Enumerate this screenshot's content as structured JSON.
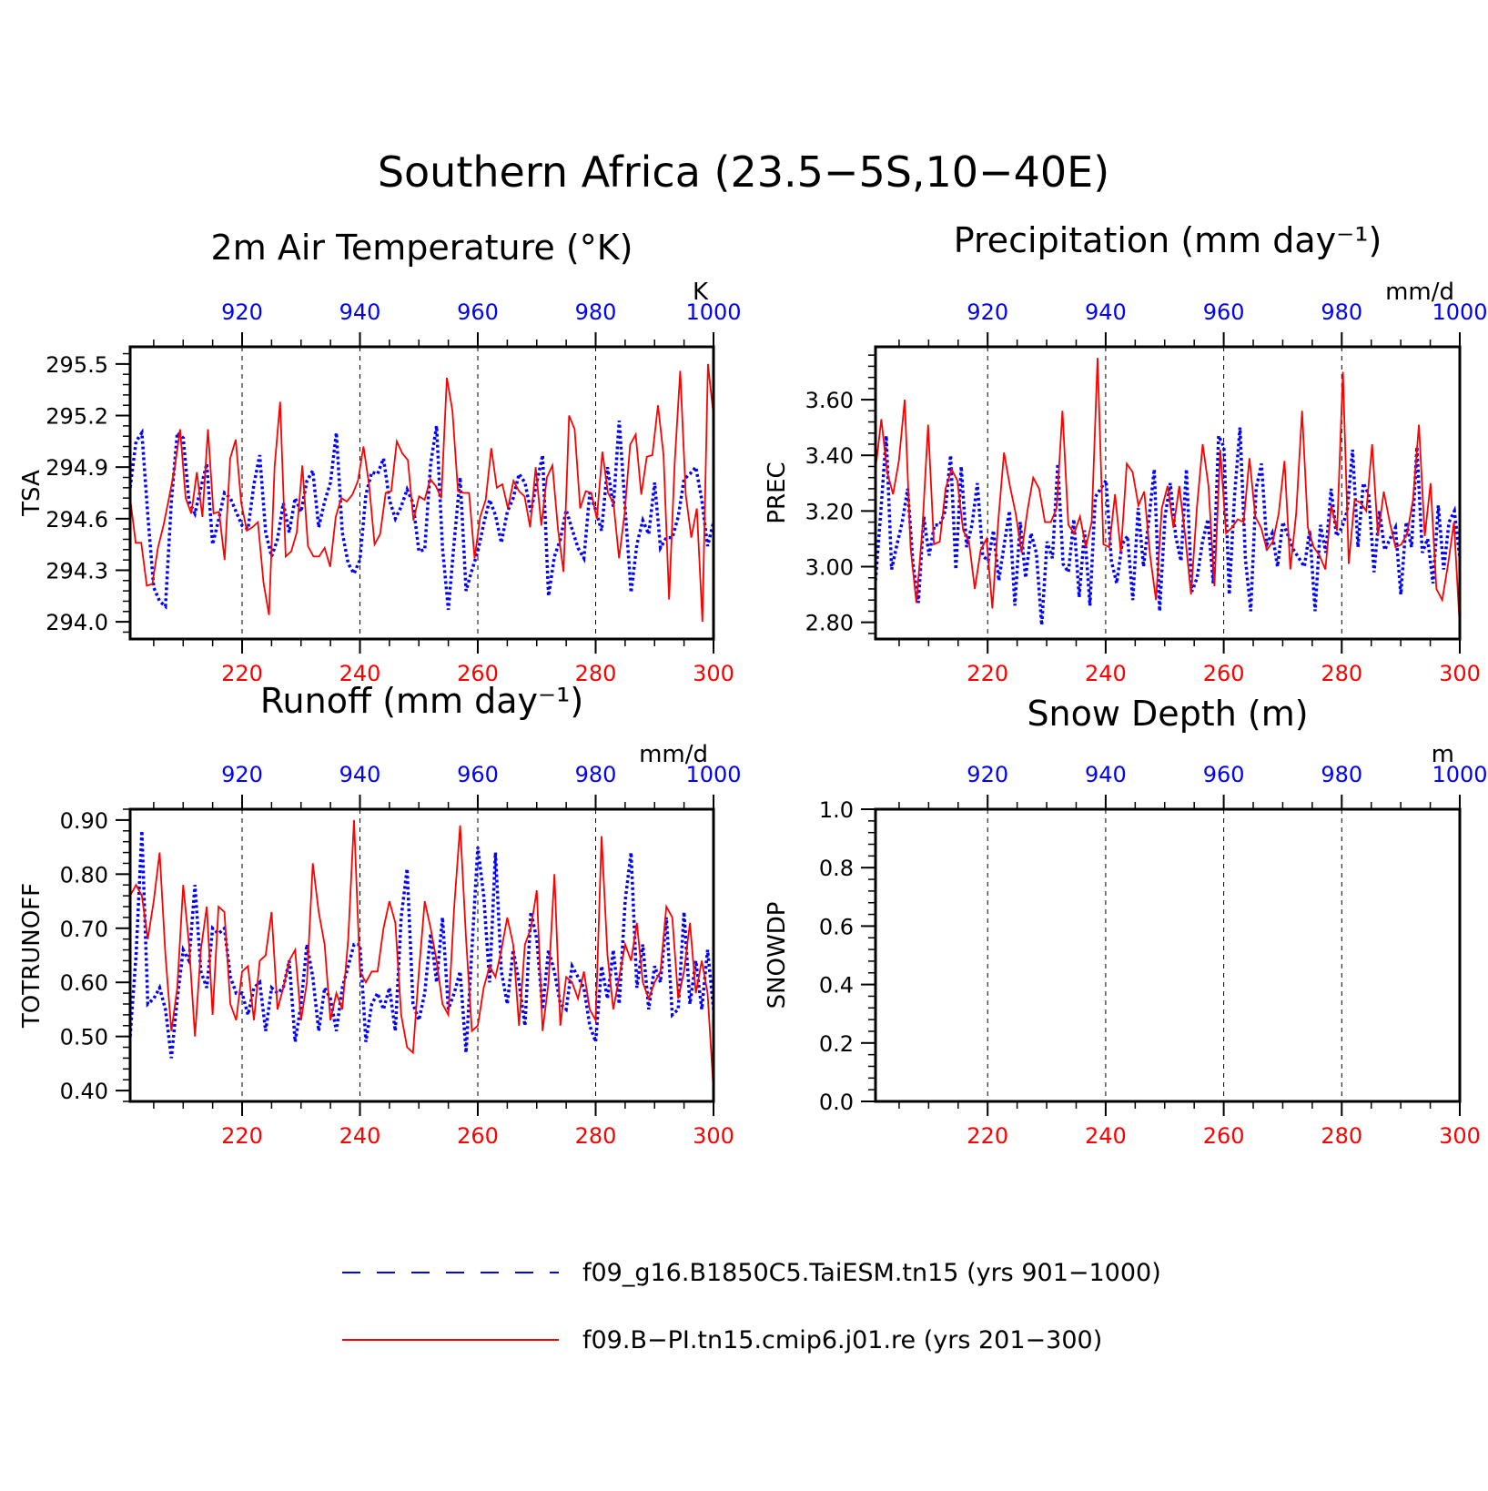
{
  "figure_title": "Southern Africa (23.5−5S,10−40E)",
  "colors": {
    "run_a": "#0000ff",
    "run_b": "#ff0000",
    "axis": "#000000"
  },
  "legend": {
    "placement": "bottom-center",
    "entries": [
      {
        "label": "f09_g16.B1850C5.TaiESM.tn15 (yrs 901−1000)",
        "color": "#0000ff",
        "style": "dashed"
      },
      {
        "label": "f09.B−PI.tn15.cmip6.j01.re (yrs 201−300)",
        "color": "#ff0000",
        "style": "solid"
      }
    ]
  },
  "chart_data": [
    {
      "type": "line",
      "title": "2m Air Temperature (°K)",
      "ylabel": "TSA",
      "units": "K",
      "ylim": [
        293.9,
        295.6
      ],
      "yticks": [
        294.0,
        294.3,
        294.6,
        294.9,
        295.2,
        295.5
      ],
      "ytick_labels": [
        "294.0",
        "294.3",
        "294.6",
        "294.9",
        "295.2",
        "295.5"
      ],
      "bottom_xlim": [
        201,
        300
      ],
      "bottom_xticks": [
        220,
        240,
        260,
        280,
        300
      ],
      "top_xlim": [
        901,
        1000
      ],
      "top_xticks": [
        920,
        940,
        960,
        980,
        1000
      ],
      "grid": "vertical dashed",
      "series": [
        {
          "values": [
            294.78,
            295.05,
            295.1,
            294.62,
            294.2,
            294.12,
            294.09,
            294.7,
            295.1,
            295.07,
            294.7,
            294.63,
            294.78,
            294.92,
            294.45,
            294.59,
            294.75,
            294.72,
            294.64,
            294.56,
            294.54,
            294.8,
            294.97,
            294.52,
            294.38,
            294.48,
            294.69,
            294.52,
            294.72,
            294.64,
            294.82,
            294.88,
            294.55,
            294.7,
            294.81,
            295.1,
            294.52,
            294.34,
            294.28,
            294.36,
            294.74,
            294.87,
            294.86,
            294.95,
            294.71,
            294.6,
            294.67,
            294.77,
            294.69,
            294.41,
            294.42,
            294.92,
            295.14,
            294.43,
            294.07,
            294.47,
            294.84,
            294.18,
            294.3,
            294.41,
            294.57,
            294.71,
            294.62,
            294.46,
            294.64,
            294.72,
            294.86,
            294.81,
            294.64,
            294.81,
            294.97,
            294.15,
            294.38,
            294.48,
            294.65,
            294.54,
            294.43,
            294.37,
            294.75,
            294.65,
            294.53,
            294.9,
            294.67,
            295.17,
            294.66,
            294.17,
            294.45,
            294.59,
            294.51,
            294.81,
            294.43,
            294.49,
            294.49,
            294.61,
            294.83,
            294.86,
            294.9,
            294.71,
            294.44,
            294.58
          ]
        },
        {
          "values": [
            294.72,
            294.46,
            294.46,
            294.21,
            294.22,
            294.43,
            294.56,
            294.72,
            294.89,
            295.12,
            294.72,
            294.63,
            294.87,
            294.61,
            295.12,
            294.63,
            294.64,
            294.36,
            294.95,
            295.06,
            294.69,
            294.53,
            294.55,
            294.58,
            294.23,
            294.04,
            294.9,
            295.28,
            294.38,
            294.41,
            294.52,
            294.91,
            294.44,
            294.38,
            294.38,
            294.43,
            294.32,
            294.61,
            294.72,
            294.7,
            294.74,
            294.82,
            295.02,
            294.8,
            294.45,
            294.51,
            294.75,
            294.76,
            295.05,
            294.98,
            294.94,
            294.59,
            294.73,
            294.71,
            294.83,
            294.79,
            294.72,
            295.42,
            295.23,
            294.76,
            294.75,
            294.75,
            294.37,
            294.61,
            294.71,
            295.01,
            294.78,
            294.8,
            294.66,
            294.82,
            294.76,
            294.73,
            294.55,
            294.9,
            294.56,
            294.84,
            294.91,
            294.54,
            294.29,
            295.2,
            295.12,
            294.66,
            294.76,
            294.75,
            294.6,
            294.99,
            294.75,
            294.69,
            294.37,
            294.63,
            295.03,
            295.09,
            294.74,
            294.96,
            294.97,
            295.26,
            294.97,
            294.13,
            294.92,
            295.46,
            294.74,
            294.49,
            294.66,
            294.0,
            295.5,
            295.2
          ]
        }
      ]
    },
    {
      "type": "line",
      "title": "Precipitation (mm day⁻¹)",
      "ylabel": "PREC",
      "units": "mm/d",
      "ylim": [
        2.74,
        3.79
      ],
      "yticks": [
        2.8,
        3.0,
        3.2,
        3.4,
        3.6
      ],
      "ytick_labels": [
        "2.80",
        "3.00",
        "3.20",
        "3.40",
        "3.60"
      ],
      "bottom_xlim": [
        201,
        300
      ],
      "bottom_xticks": [
        220,
        240,
        260,
        280,
        300
      ],
      "top_xlim": [
        901,
        1000
      ],
      "top_xticks": [
        920,
        940,
        960,
        980,
        1000
      ],
      "grid": "vertical dashed",
      "series": [
        {
          "values": [
            2.95,
            3.2,
            3.47,
            2.99,
            3.08,
            3.16,
            3.28,
            3.01,
            2.87,
            3.18,
            3.04,
            3.15,
            3.15,
            3.2,
            3.4,
            2.99,
            3.36,
            3.07,
            3.15,
            3.3,
            3.04,
            3.02,
            3.13,
            2.95,
            3.08,
            3.2,
            2.86,
            3.16,
            2.96,
            3.12,
            3.05,
            2.79,
            3.09,
            3.03,
            3.37,
            3.01,
            2.98,
            3.17,
            2.89,
            3.13,
            2.86,
            3.25,
            3.28,
            3.31,
            3.02,
            2.94,
            3.08,
            3.11,
            2.88,
            3.21,
            3.0,
            3.17,
            3.35,
            2.84,
            3.18,
            3.3,
            3.11,
            3.02,
            3.35,
            2.91,
            2.96,
            3.09,
            3.17,
            2.94,
            3.47,
            3.43,
            2.9,
            3.26,
            3.5,
            3.03,
            2.84,
            3.28,
            3.37,
            3.08,
            3.12,
            3.0,
            3.16,
            3.11,
            3.06,
            3.03,
            3.0,
            3.13,
            2.84,
            3.15,
            3.05,
            3.28,
            3.11,
            3.14,
            3.2,
            3.42,
            3.07,
            3.3,
            3.26,
            2.98,
            3.2,
            3.06,
            3.1,
            3.14,
            2.9,
            3.16,
            3.07,
            3.43,
            3.05,
            3.1,
            2.94,
            3.22,
            2.99,
            3.16,
            3.2,
            3.03
          ]
        },
        {
          "values": [
            3.35,
            3.53,
            3.34,
            3.26,
            3.38,
            3.6,
            3.07,
            2.87,
            3.13,
            3.51,
            3.08,
            3.09,
            3.28,
            3.35,
            3.31,
            3.13,
            3.09,
            2.92,
            3.06,
            3.1,
            2.85,
            3.16,
            3.41,
            3.29,
            3.19,
            3.05,
            3.2,
            3.32,
            3.28,
            3.16,
            3.16,
            3.21,
            3.56,
            3.15,
            3.12,
            3.18,
            3.07,
            3.16,
            3.75,
            3.08,
            3.07,
            3.26,
            3.05,
            3.37,
            3.34,
            3.22,
            3.27,
            3.04,
            2.88,
            3.21,
            3.29,
            3.14,
            3.29,
            3.11,
            2.9,
            3.21,
            3.44,
            3.29,
            2.93,
            3.42,
            3.12,
            3.14,
            3.17,
            3.16,
            3.39,
            3.18,
            3.14,
            3.06,
            3.09,
            3.19,
            3.38,
            2.99,
            3.19,
            3.56,
            3.14,
            3.07,
            3.04,
            2.99,
            3.22,
            3.13,
            3.7,
            3.01,
            3.24,
            3.23,
            3.2,
            3.44,
            3.11,
            3.27,
            3.16,
            3.07,
            3.08,
            3.12,
            3.24,
            3.51,
            3.11,
            3.3,
            2.92,
            2.88,
            3.01,
            3.16,
            2.78
          ]
        }
      ]
    },
    {
      "type": "line",
      "title": "Runoff (mm day⁻¹)",
      "ylabel": "TOTRUNOFF",
      "units": "mm/d",
      "ylim": [
        0.38,
        0.92
      ],
      "yticks": [
        0.4,
        0.5,
        0.6,
        0.7,
        0.8,
        0.9
      ],
      "ytick_labels": [
        "0.40",
        "0.50",
        "0.60",
        "0.70",
        "0.80",
        "0.90"
      ],
      "bottom_xlim": [
        201,
        300
      ],
      "bottom_xticks": [
        220,
        240,
        260,
        280,
        300
      ],
      "top_xlim": [
        901,
        1000
      ],
      "top_xticks": [
        920,
        940,
        960,
        980,
        1000
      ],
      "grid": "vertical dashed",
      "series": [
        {
          "values": [
            0.5,
            0.65,
            0.88,
            0.56,
            0.57,
            0.59,
            0.55,
            0.46,
            0.57,
            0.66,
            0.64,
            0.78,
            0.62,
            0.59,
            0.7,
            0.69,
            0.7,
            0.61,
            0.58,
            0.58,
            0.54,
            0.59,
            0.6,
            0.51,
            0.59,
            0.58,
            0.59,
            0.64,
            0.49,
            0.56,
            0.67,
            0.61,
            0.51,
            0.59,
            0.57,
            0.51,
            0.59,
            0.63,
            0.67,
            0.67,
            0.49,
            0.56,
            0.58,
            0.55,
            0.59,
            0.51,
            0.72,
            0.81,
            0.56,
            0.53,
            0.58,
            0.69,
            0.6,
            0.72,
            0.55,
            0.58,
            0.62,
            0.47,
            0.66,
            0.85,
            0.76,
            0.6,
            0.84,
            0.62,
            0.56,
            0.66,
            0.6,
            0.52,
            0.73,
            0.68,
            0.55,
            0.66,
            0.62,
            0.56,
            0.55,
            0.63,
            0.61,
            0.59,
            0.52,
            0.49,
            0.63,
            0.57,
            0.66,
            0.56,
            0.75,
            0.84,
            0.59,
            0.67,
            0.55,
            0.63,
            0.6,
            0.72,
            0.54,
            0.55,
            0.73,
            0.56,
            0.64,
            0.55,
            0.66,
            0.55
          ]
        },
        {
          "values": [
            0.76,
            0.78,
            0.76,
            0.68,
            0.75,
            0.84,
            0.65,
            0.51,
            0.59,
            0.78,
            0.67,
            0.5,
            0.66,
            0.74,
            0.54,
            0.74,
            0.73,
            0.56,
            0.53,
            0.62,
            0.63,
            0.53,
            0.64,
            0.65,
            0.73,
            0.55,
            0.59,
            0.64,
            0.66,
            0.53,
            0.6,
            0.82,
            0.73,
            0.67,
            0.53,
            0.58,
            0.55,
            0.68,
            0.9,
            0.62,
            0.6,
            0.62,
            0.62,
            0.7,
            0.75,
            0.71,
            0.54,
            0.48,
            0.47,
            0.62,
            0.75,
            0.7,
            0.64,
            0.56,
            0.54,
            0.74,
            0.89,
            0.68,
            0.51,
            0.52,
            0.59,
            0.63,
            0.61,
            0.66,
            0.72,
            0.67,
            0.52,
            0.67,
            0.7,
            0.77,
            0.51,
            0.6,
            0.8,
            0.52,
            0.61,
            0.6,
            0.57,
            0.62,
            0.55,
            0.53,
            0.87,
            0.65,
            0.55,
            0.61,
            0.67,
            0.64,
            0.71,
            0.6,
            0.57,
            0.6,
            0.62,
            0.74,
            0.72,
            0.57,
            0.62,
            0.71,
            0.58,
            0.64,
            0.58,
            0.4
          ]
        }
      ]
    },
    {
      "type": "line",
      "title": "Snow Depth (m)",
      "ylabel": "SNOWDP",
      "units": "m",
      "ylim": [
        0.0,
        1.0
      ],
      "yticks": [
        0.0,
        0.2,
        0.4,
        0.6,
        0.8,
        1.0
      ],
      "ytick_labels": [
        "0.0",
        "0.2",
        "0.4",
        "0.6",
        "0.8",
        "1.0"
      ],
      "bottom_xlim": [
        201,
        300
      ],
      "bottom_xticks": [
        220,
        240,
        260,
        280,
        300
      ],
      "top_xlim": [
        901,
        1000
      ],
      "top_xticks": [
        920,
        940,
        960,
        980,
        1000
      ],
      "grid": "vertical dashed",
      "series": []
    }
  ]
}
